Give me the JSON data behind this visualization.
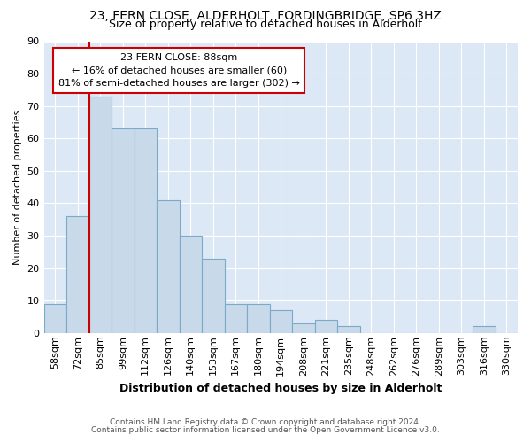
{
  "title1": "23, FERN CLOSE, ALDERHOLT, FORDINGBRIDGE, SP6 3HZ",
  "title2": "Size of property relative to detached houses in Alderholt",
  "xlabel": "Distribution of detached houses by size in Alderholt",
  "ylabel": "Number of detached properties",
  "bar_labels": [
    "58sqm",
    "72sqm",
    "85sqm",
    "99sqm",
    "112sqm",
    "126sqm",
    "140sqm",
    "153sqm",
    "167sqm",
    "180sqm",
    "194sqm",
    "208sqm",
    "221sqm",
    "235sqm",
    "248sqm",
    "262sqm",
    "276sqm",
    "289sqm",
    "303sqm",
    "316sqm",
    "330sqm"
  ],
  "bar_heights": [
    9,
    36,
    73,
    63,
    63,
    41,
    30,
    23,
    9,
    9,
    7,
    3,
    4,
    2,
    0,
    0,
    0,
    0,
    0,
    2,
    0
  ],
  "bar_color": "#c8daea",
  "bar_edge_color": "#7aaac8",
  "red_line_x": 2.0,
  "annotation_title": "23 FERN CLOSE: 88sqm",
  "annotation_line1": "← 16% of detached houses are smaller (60)",
  "annotation_line2": "81% of semi-detached houses are larger (302) →",
  "annotation_box_color": "white",
  "annotation_box_edge": "#cc0000",
  "red_line_color": "#cc0000",
  "ylim": [
    0,
    90
  ],
  "yticks": [
    0,
    10,
    20,
    30,
    40,
    50,
    60,
    70,
    80,
    90
  ],
  "footnote1": "Contains HM Land Registry data © Crown copyright and database right 2024.",
  "footnote2": "Contains public sector information licensed under the Open Government Licence v3.0.",
  "fig_background": "#ffffff",
  "plot_background": "#dce8f5",
  "grid_color": "#ffffff",
  "title1_fontsize": 10,
  "title2_fontsize": 9
}
